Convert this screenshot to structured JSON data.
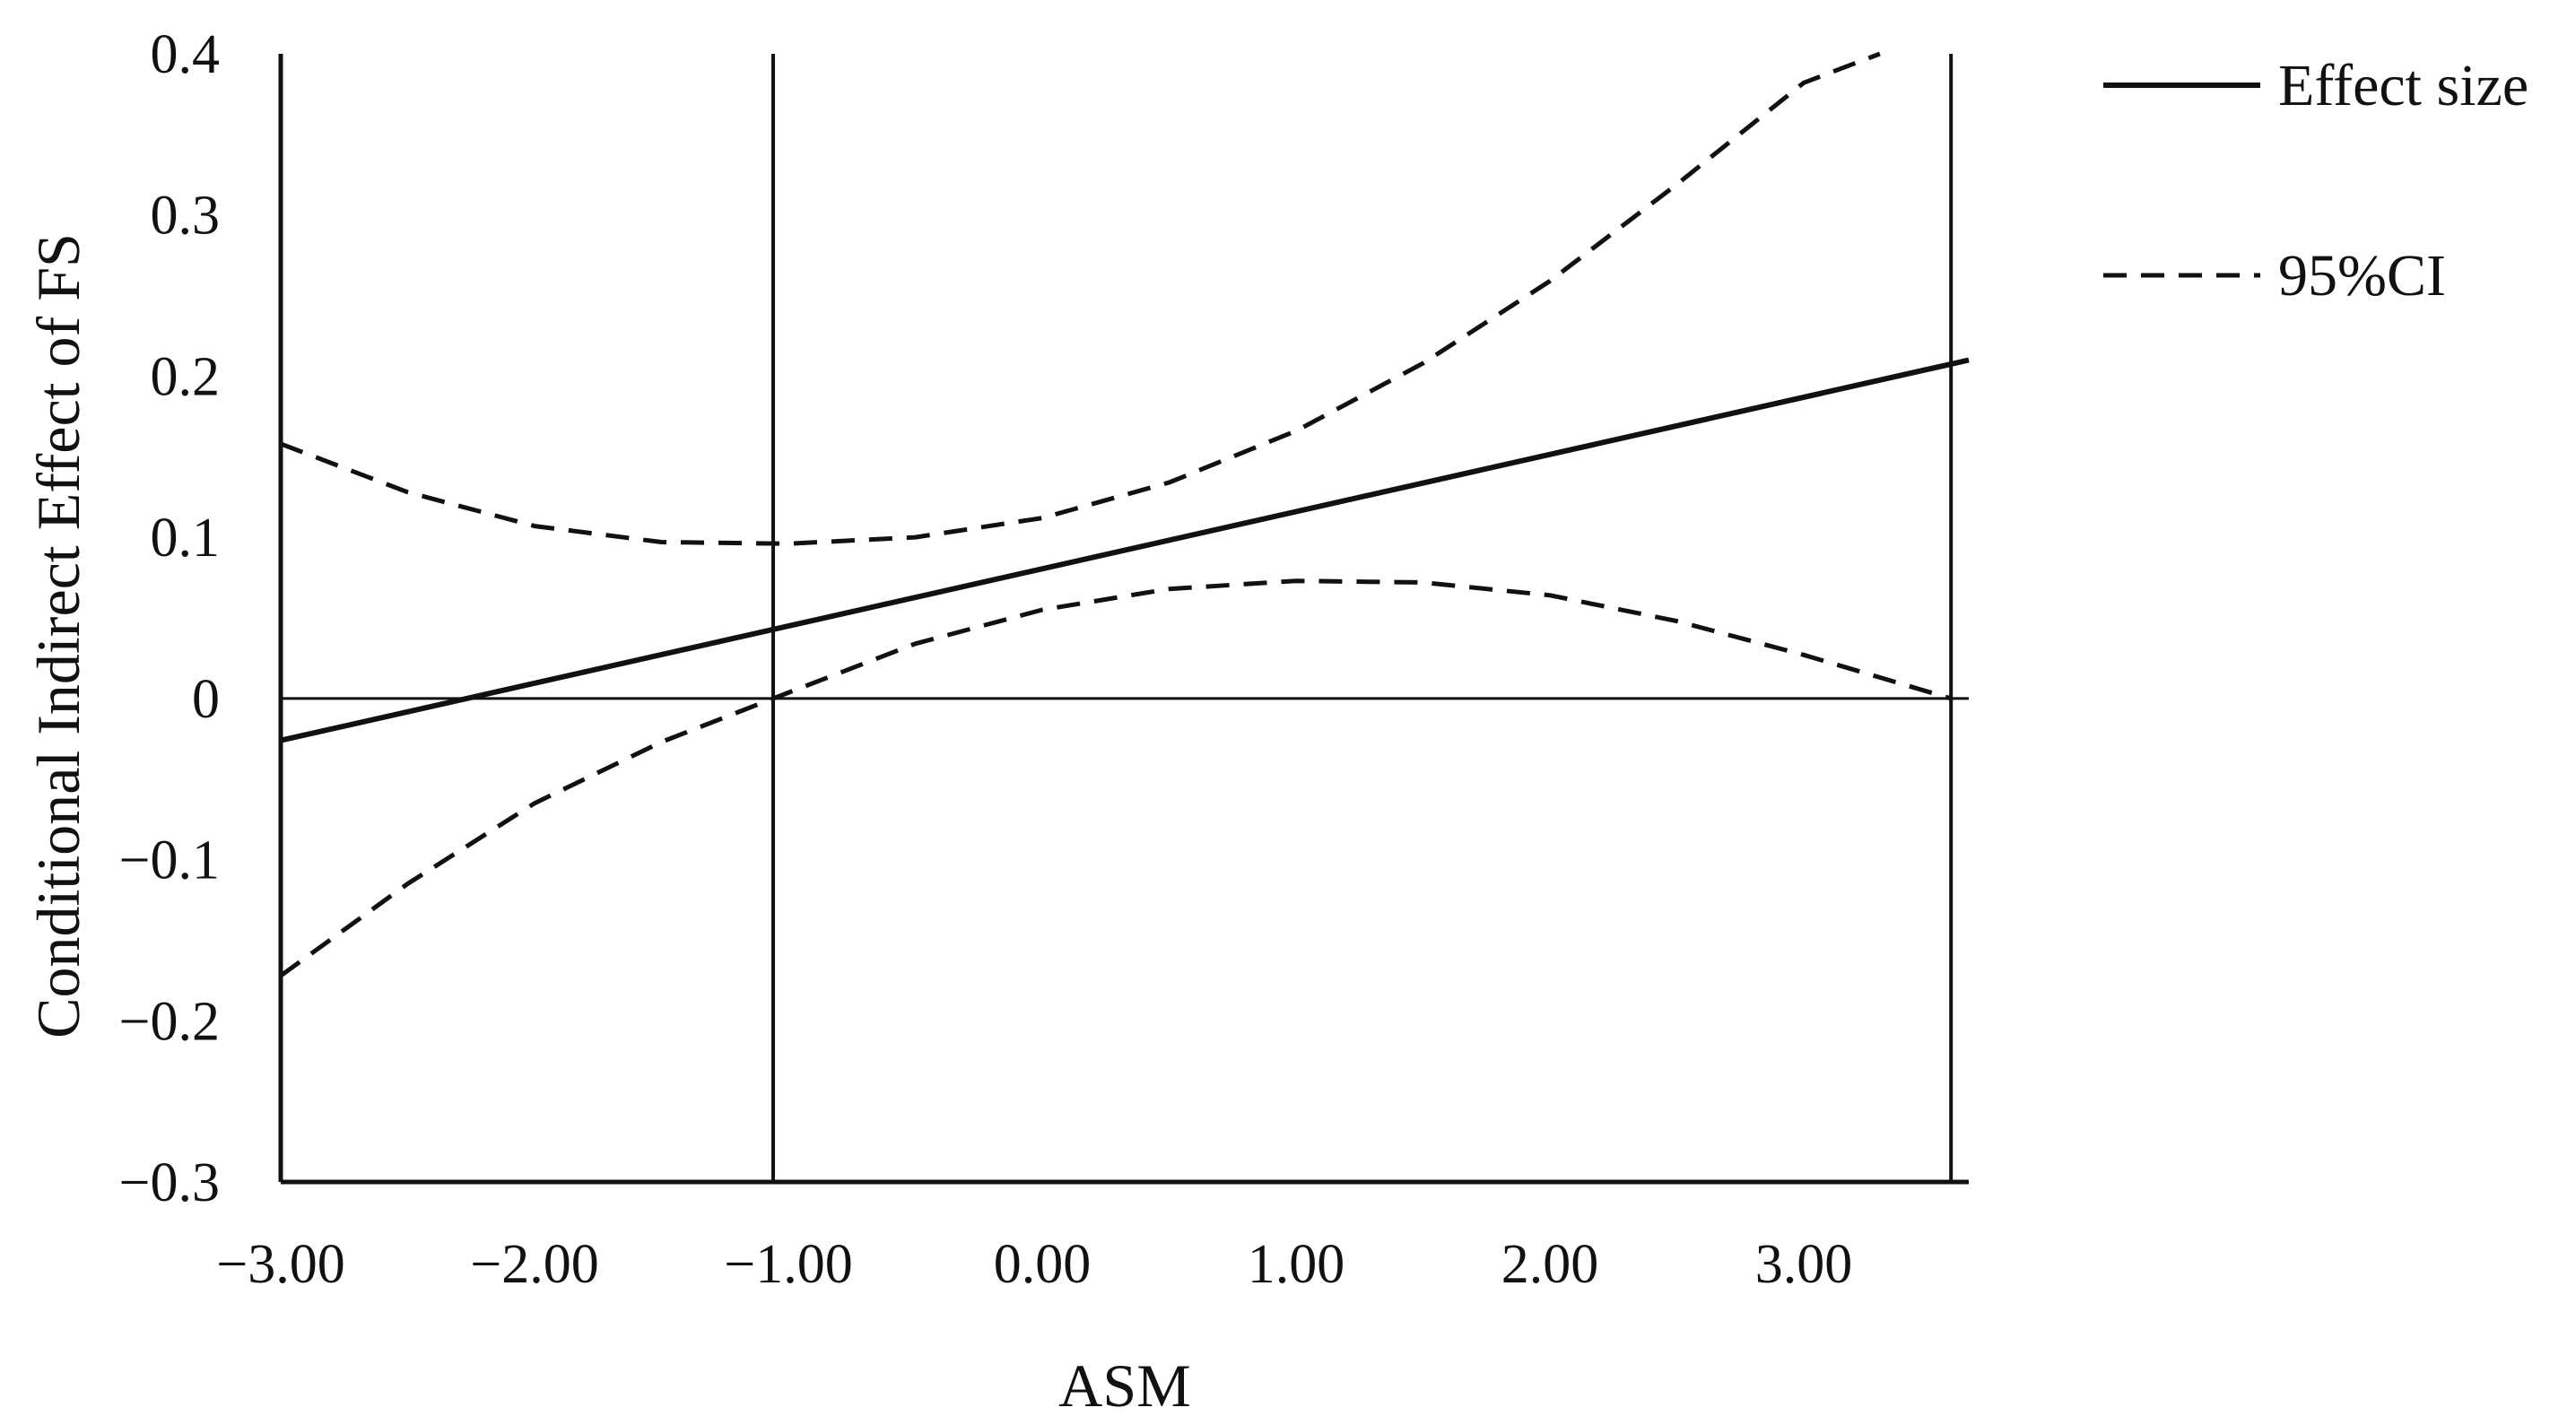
{
  "chart_data": {
    "type": "line",
    "title": "",
    "xlabel": "ASM",
    "ylabel": "Conditional Indirect Effect of FS",
    "xlim": [
      -3.0,
      3.65
    ],
    "ylim": [
      -0.3,
      0.4
    ],
    "grid": false,
    "legend_position": "top-right",
    "x_ticks": [
      -3,
      -2,
      -1,
      0,
      1,
      2,
      3
    ],
    "x_tick_labels": [
      "−3.00",
      "−2.00",
      "−1.00",
      "0.00",
      "1.00",
      "2.00",
      "3.00"
    ],
    "y_ticks": [
      -0.3,
      -0.2,
      -0.1,
      0,
      0.1,
      0.2,
      0.3,
      0.4
    ],
    "y_tick_labels": [
      "−0.3",
      "−0.2",
      "−0.1",
      "0",
      "0.1",
      "0.2",
      "0.3",
      "0.4"
    ],
    "reference_lines": {
      "horizontal_y": 0,
      "vertical_x": [
        -1.06,
        3.58
      ]
    },
    "series": [
      {
        "name": "Effect size",
        "style": "solid",
        "x": [
          -3.0,
          3.65
        ],
        "y": [
          -0.026,
          0.21
        ]
      },
      {
        "name": "95%CI",
        "style": "dashed",
        "bound": "upper",
        "x": [
          -3.0,
          -2.5,
          -2.0,
          -1.5,
          -1.0,
          -0.5,
          0.0,
          0.5,
          1.0,
          1.5,
          2.0,
          2.5,
          3.0,
          3.3
        ],
        "y": [
          0.158,
          0.128,
          0.107,
          0.097,
          0.096,
          0.1,
          0.112,
          0.134,
          0.166,
          0.208,
          0.259,
          0.319,
          0.382,
          0.4
        ]
      },
      {
        "name": "",
        "style": "dashed",
        "bound": "lower",
        "x": [
          -3.0,
          -2.5,
          -2.0,
          -1.5,
          -1.06,
          -0.5,
          0.0,
          0.5,
          1.0,
          1.5,
          2.0,
          2.5,
          3.0,
          3.58
        ],
        "y": [
          -0.172,
          -0.115,
          -0.065,
          -0.027,
          0.0,
          0.034,
          0.055,
          0.068,
          0.073,
          0.072,
          0.064,
          0.048,
          0.027,
          0.0
        ]
      }
    ],
    "colors": {
      "line": "#111111",
      "background": "#ffffff"
    }
  }
}
